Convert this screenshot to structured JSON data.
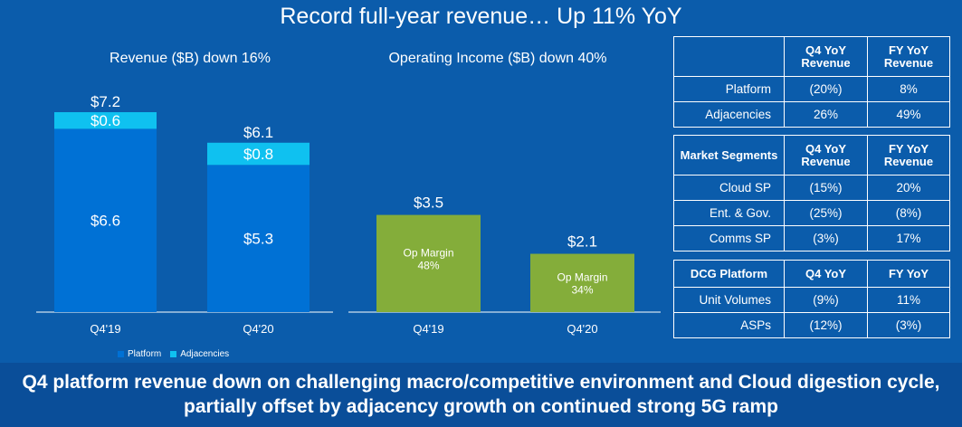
{
  "slide": {
    "title": "Record full-year revenue… Up 11% YoY",
    "footer_line1": "Q4 platform revenue down on challenging macro/competitive environment and Cloud digestion cycle,",
    "footer_line2": "partially offset by adjacency growth on continued strong 5G ramp"
  },
  "colors": {
    "background": "#0b5cab",
    "platform": "#0071d5",
    "adjacencies": "#0fc1f0",
    "op_income": "#84ad3a"
  },
  "chart_data": [
    {
      "type": "bar",
      "stacked": true,
      "title": "Revenue ($B) down 16%",
      "categories": [
        "Q4'19",
        "Q4'20"
      ],
      "series": [
        {
          "name": "Platform",
          "values": [
            6.6,
            5.3
          ],
          "labels": [
            "$6.6",
            "$5.3"
          ]
        },
        {
          "name": "Adjacencies",
          "values": [
            0.6,
            0.8
          ],
          "labels": [
            "$0.6",
            "$0.8"
          ]
        }
      ],
      "totals": [
        7.2,
        6.1
      ],
      "total_labels": [
        "$7.2",
        "$6.1"
      ],
      "legend": [
        "Platform",
        "Adjacencies"
      ],
      "legend_position": "bottom",
      "ylim": [
        0,
        7.2
      ]
    },
    {
      "type": "bar",
      "title": "Operating Income ($B) down 40%",
      "categories": [
        "Q4'19",
        "Q4'20"
      ],
      "values": [
        3.5,
        2.1
      ],
      "value_labels": [
        "$3.5",
        "$2.1"
      ],
      "annotations": [
        {
          "line1": "Op Margin",
          "line2": "48%"
        },
        {
          "line1": "Op Margin",
          "line2": "34%"
        }
      ],
      "ylim": [
        0,
        7.2
      ]
    },
    {
      "type": "table",
      "tables": [
        {
          "headers": [
            "",
            "Q4 YoY Revenue",
            "FY YoY Revenue"
          ],
          "rows": [
            [
              "Platform",
              "(20%)",
              "8%"
            ],
            [
              "Adjacencies",
              "26%",
              "49%"
            ]
          ]
        },
        {
          "headers": [
            "Market Segments",
            "Q4 YoY Revenue",
            "FY YoY Revenue"
          ],
          "rows": [
            [
              "Cloud SP",
              "(15%)",
              "20%"
            ],
            [
              "Ent. & Gov.",
              "(25%)",
              "(8%)"
            ],
            [
              "Comms SP",
              "(3%)",
              "17%"
            ]
          ]
        },
        {
          "headers": [
            "DCG Platform",
            "Q4 YoY",
            "FY YoY"
          ],
          "rows": [
            [
              "Unit Volumes",
              "(9%)",
              "11%"
            ],
            [
              "ASPs",
              "(12%)",
              "(3%)"
            ]
          ]
        }
      ]
    }
  ]
}
